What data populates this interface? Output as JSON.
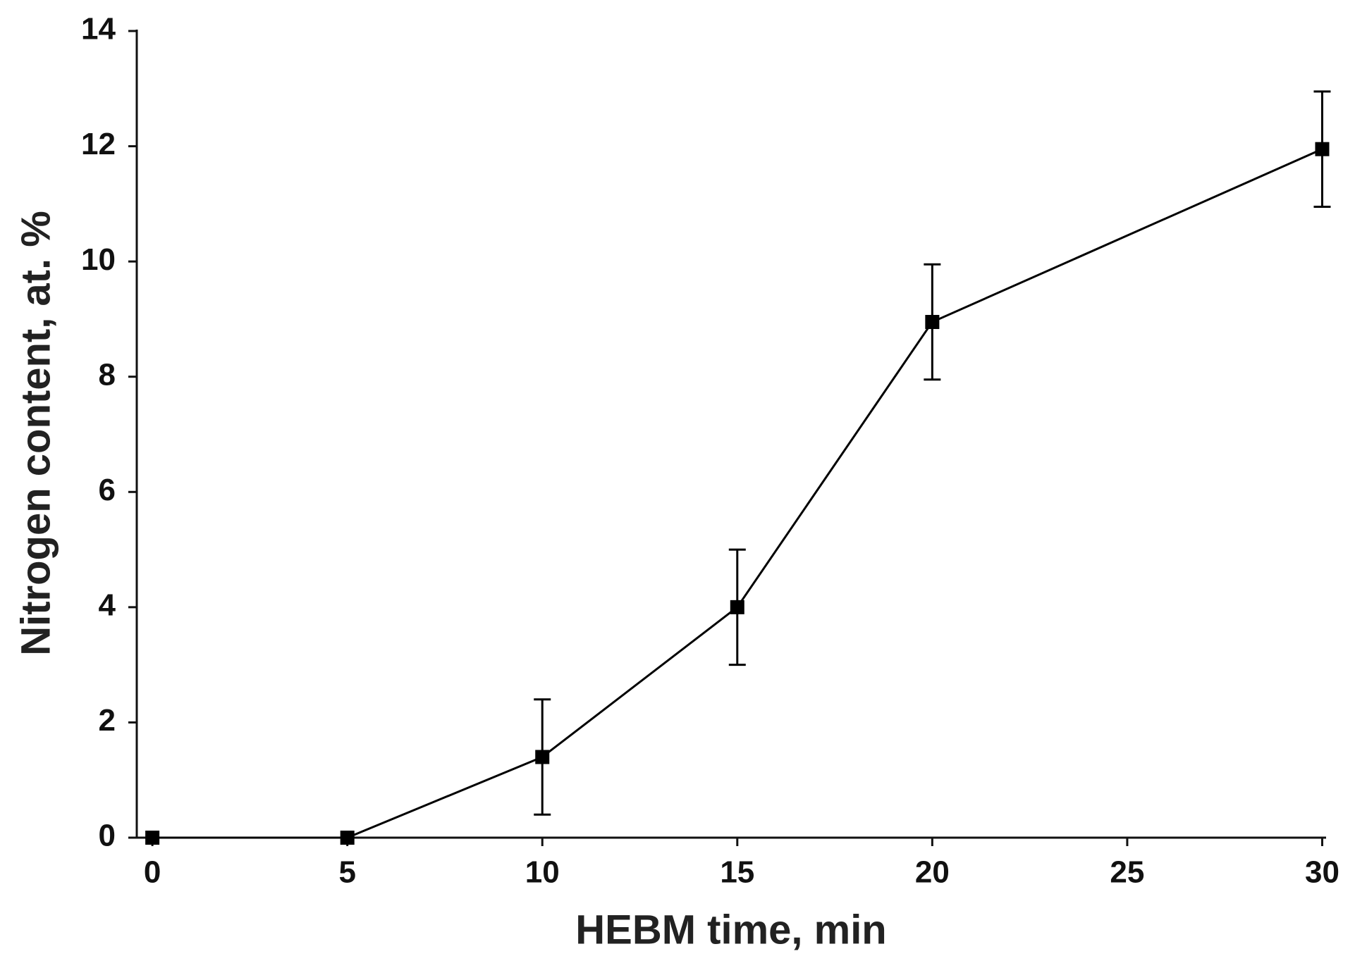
{
  "chart_data": {
    "type": "line",
    "x_label": "HEBM time, min",
    "y_label": "Nitrogen content, at. %",
    "x": [
      0,
      5,
      10,
      15,
      20,
      30
    ],
    "values": [
      0,
      0,
      1.4,
      4,
      8.95,
      11.95
    ],
    "errors": [
      null,
      null,
      1,
      1,
      1,
      1
    ],
    "color": "#000000",
    "marker": "square",
    "xlim": [
      -0.4,
      30.1
    ],
    "ylim": [
      0,
      14
    ],
    "xticks": [
      0,
      5,
      10,
      15,
      20,
      25,
      30
    ],
    "yticks": [
      0,
      2,
      4,
      6,
      8,
      10,
      12,
      14
    ],
    "grid": false
  }
}
